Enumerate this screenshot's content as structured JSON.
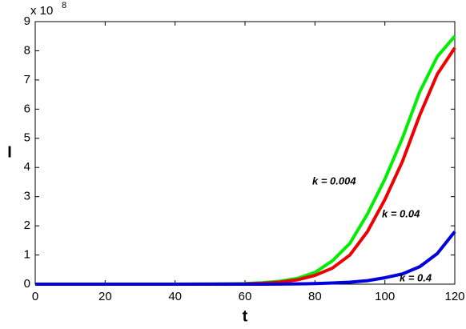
{
  "chart_data": {
    "type": "line",
    "xlabel": "t",
    "ylabel": "I",
    "y_multiplier": "x 10",
    "y_exponent": "8",
    "x": [
      0,
      10,
      20,
      30,
      40,
      50,
      55,
      60,
      65,
      70,
      75,
      80,
      85,
      90,
      95,
      100,
      105,
      110,
      115,
      120
    ],
    "series": [
      {
        "name": "k = 0.004",
        "color": "#00ee00",
        "values": [
          0,
          0,
          0,
          0,
          0,
          0.005,
          0.01,
          0.02,
          0.05,
          0.1,
          0.2,
          0.4,
          0.8,
          1.4,
          2.4,
          3.6,
          5.0,
          6.6,
          7.8,
          8.5
        ]
      },
      {
        "name": "k = 0.04",
        "color": "#ee0000",
        "values": [
          0,
          0,
          0,
          0,
          0,
          0.003,
          0.006,
          0.01,
          0.03,
          0.07,
          0.15,
          0.3,
          0.55,
          1.0,
          1.8,
          2.9,
          4.2,
          5.8,
          7.2,
          8.1
        ]
      },
      {
        "name": "k = 0.4",
        "color": "#0000dd",
        "values": [
          0,
          0,
          0,
          0,
          0,
          0,
          0,
          0,
          0,
          0.005,
          0.01,
          0.02,
          0.04,
          0.07,
          0.12,
          0.22,
          0.35,
          0.6,
          1.05,
          1.8
        ]
      }
    ],
    "xlim": [
      0,
      120
    ],
    "xticks": [
      0,
      20,
      40,
      60,
      80,
      100,
      120
    ],
    "ylim": [
      0,
      9
    ],
    "yticks": [
      0,
      1,
      2,
      3,
      4,
      5,
      6,
      7,
      8,
      9
    ],
    "grid": false
  }
}
